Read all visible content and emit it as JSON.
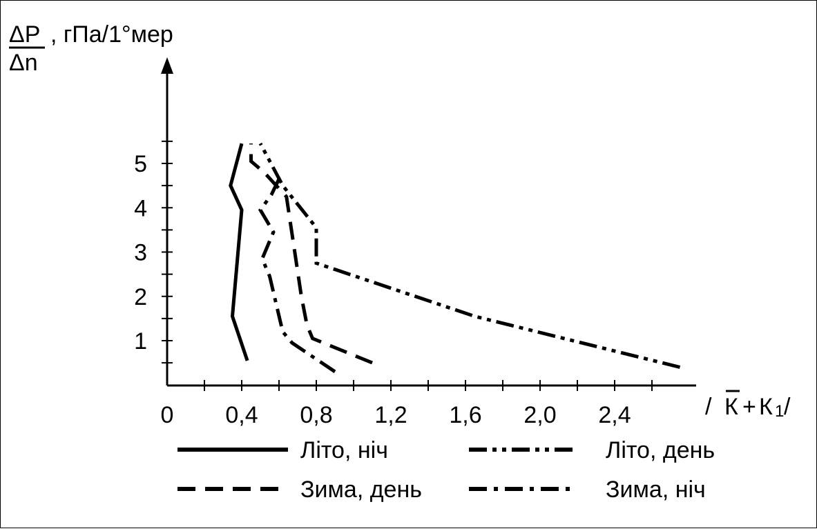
{
  "chart_data": {
    "type": "line",
    "y_axis_label": {
      "numerator": "ΔP",
      "denominator": "Δn",
      "unit": ", гПа/1°мер"
    },
    "x_axis_label": {
      "left_bar": "/",
      "k_bar": "К",
      "plus": "+",
      "k1": "К",
      "k1_sub": "1",
      "right_bar": "/"
    },
    "xlim": [
      0,
      2.8
    ],
    "ylim": [
      -0.5,
      5.5
    ],
    "x_ticks": [
      {
        "value": 0,
        "label": "0"
      },
      {
        "value": 0.4,
        "label": "0,4"
      },
      {
        "value": 0.8,
        "label": "0,8"
      },
      {
        "value": 1.2,
        "label": "1,2"
      },
      {
        "value": 1.6,
        "label": "1,6"
      },
      {
        "value": 2.0,
        "label": "2,0"
      },
      {
        "value": 2.4,
        "label": "2,4"
      }
    ],
    "x_minor_ticks": [
      0.2,
      0.6,
      1.0,
      1.4,
      1.8,
      2.2,
      2.6
    ],
    "y_ticks": [
      {
        "value": 1,
        "label": "1"
      },
      {
        "value": 2,
        "label": "2"
      },
      {
        "value": 3,
        "label": "3"
      },
      {
        "value": 4,
        "label": "4"
      },
      {
        "value": 5,
        "label": "5"
      }
    ],
    "y_minor_ticks": [
      0.5,
      1.5,
      2.5,
      3.5,
      4.5,
      5.5
    ],
    "series": [
      {
        "name": "Літо, ніч",
        "style": "solid",
        "color": "#000000",
        "points": [
          [
            0.43,
            0.55
          ],
          [
            0.35,
            1.55
          ],
          [
            0.4,
            3.95
          ],
          [
            0.34,
            4.5
          ],
          [
            0.4,
            5.45
          ]
        ]
      },
      {
        "name": "Літо, день",
        "style": "dash-dot-dot",
        "color": "#000000",
        "points": [
          [
            2.75,
            0.4
          ],
          [
            1.65,
            1.55
          ],
          [
            0.8,
            2.75
          ],
          [
            0.8,
            3.55
          ],
          [
            0.62,
            4.5
          ],
          [
            0.5,
            5.45
          ]
        ]
      },
      {
        "name": "Зима, день",
        "style": "dashed",
        "color": "#000000",
        "points": [
          [
            1.1,
            0.5
          ],
          [
            0.78,
            1.05
          ],
          [
            0.75,
            1.35
          ],
          [
            0.72,
            2.0
          ],
          [
            0.64,
            4.25
          ],
          [
            0.52,
            4.8
          ],
          [
            0.45,
            5.05
          ],
          [
            0.45,
            5.45
          ]
        ]
      },
      {
        "name": "Зима, ніч",
        "style": "dash-dot",
        "color": "#000000",
        "points": [
          [
            0.9,
            0.3
          ],
          [
            0.67,
            0.95
          ],
          [
            0.62,
            1.2
          ],
          [
            0.55,
            2.45
          ],
          [
            0.51,
            2.85
          ],
          [
            0.57,
            3.45
          ],
          [
            0.5,
            3.95
          ],
          [
            0.56,
            4.3
          ],
          [
            0.6,
            4.65
          ]
        ]
      }
    ]
  }
}
